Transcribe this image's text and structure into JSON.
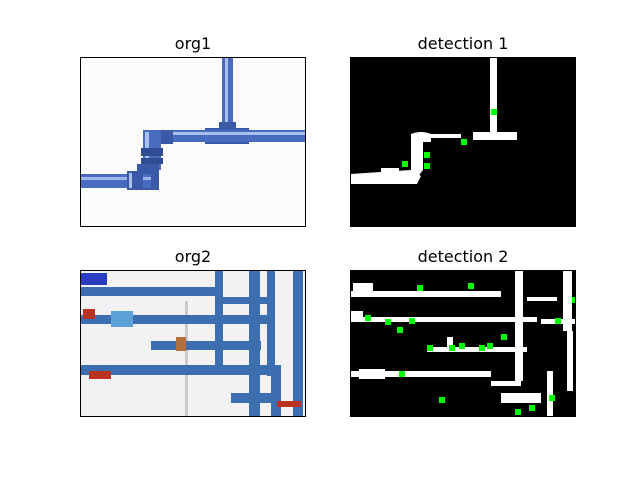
{
  "figure": {
    "panels": [
      {
        "title": "org1"
      },
      {
        "title": "detection 1"
      },
      {
        "title": "org2"
      },
      {
        "title": "detection 2"
      }
    ],
    "colors": {
      "pipe_blue": "#3f63b5",
      "pipe_highlight": "#9fb7e8",
      "mask_white": "#ffffff",
      "mask_black": "#000000",
      "marker_green": "#00ff00",
      "valve_red": "#b8321f"
    }
  }
}
